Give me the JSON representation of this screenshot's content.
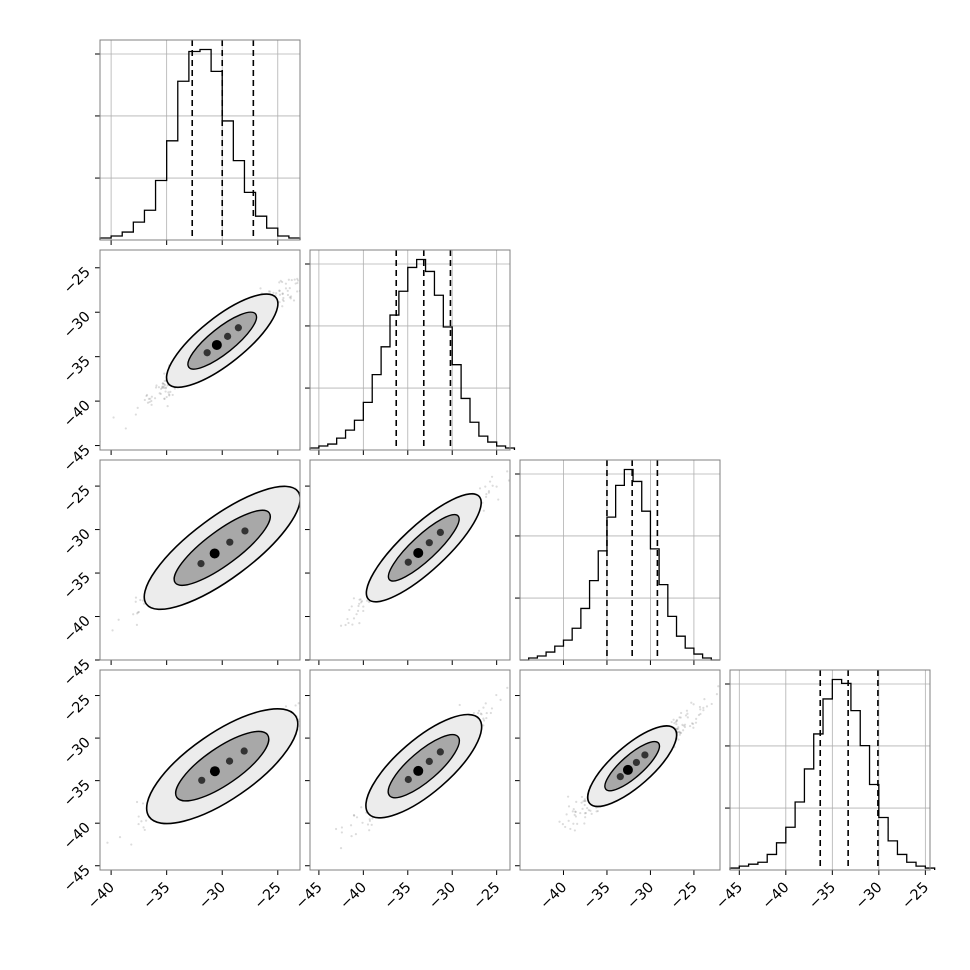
{
  "chart_data": {
    "type": "corner",
    "n_params": 4,
    "colors": {
      "hist": "#000000",
      "quantile": "#000000",
      "scatter": "#808080",
      "grid": "#b0b0b0",
      "frame": "#808080"
    },
    "grid": true,
    "quantile_style": "dashed",
    "x_ranges": [
      [
        -41,
        -23
      ],
      [
        -46,
        -23.5
      ],
      [
        -45,
        -22
      ],
      [
        -46,
        -24.5
      ]
    ],
    "y_ranges": [
      null,
      [
        -45.5,
        -23
      ],
      [
        -45,
        -22
      ],
      [
        -45.5,
        -22
      ]
    ],
    "x_ticks": [
      [
        "−40",
        "−35",
        "−30",
        "−25"
      ],
      [
        "−45",
        "−40",
        "−35",
        "−30",
        "−25"
      ],
      [
        "−40",
        "−35",
        "−30",
        "−25"
      ],
      [
        "−45",
        "−40",
        "−35",
        "−30",
        "−25"
      ]
    ],
    "x_tick_values": [
      [
        -40,
        -35,
        -30,
        -25
      ],
      [
        -45,
        -40,
        -35,
        -30,
        -25
      ],
      [
        -40,
        -35,
        -30,
        -25
      ],
      [
        -45,
        -40,
        -35,
        -30,
        -25
      ]
    ],
    "y_ticks": [
      "−25",
      "−30",
      "−35",
      "−40",
      "−45"
    ],
    "y_tick_values": [
      -25,
      -30,
      -35,
      -40,
      -45
    ],
    "histograms": [
      {
        "param": 0,
        "bin_start": -41,
        "bin_width": 1,
        "counts": [
          1,
          2,
          4,
          9,
          15,
          30,
          50,
          80,
          95,
          96,
          85,
          60,
          40,
          24,
          12,
          6,
          2,
          1
        ],
        "quantiles": [
          -32.7,
          -30.0,
          -27.2
        ]
      },
      {
        "param": 1,
        "bin_start": -46,
        "bin_width": 1,
        "counts": [
          1,
          2,
          3,
          6,
          10,
          15,
          24,
          38,
          52,
          68,
          80,
          92,
          96,
          90,
          78,
          62,
          43,
          26,
          14,
          7,
          4,
          2,
          1
        ],
        "quantiles": [
          -36.3,
          -33.2,
          -30.2
        ]
      },
      {
        "param": 2,
        "bin_start": -45,
        "bin_width": 1,
        "counts": [
          0,
          1,
          2,
          4,
          7,
          10,
          16,
          26,
          40,
          55,
          72,
          88,
          96,
          90,
          75,
          56,
          38,
          22,
          12,
          6,
          3,
          1,
          0
        ],
        "quantiles": [
          -35.0,
          -32.1,
          -29.2
        ]
      },
      {
        "param": 3,
        "bin_start": -46,
        "bin_width": 1,
        "counts": [
          1,
          2,
          3,
          4,
          8,
          14,
          22,
          35,
          52,
          70,
          88,
          98,
          96,
          82,
          64,
          44,
          27,
          15,
          8,
          4,
          2,
          1
        ],
        "quantiles": [
          -36.3,
          -33.3,
          -30.1
        ]
      }
    ],
    "pairs": [
      {
        "x": 0,
        "y": 1,
        "center": [
          -30.0,
          -33.2
        ],
        "major": 6.2,
        "minor": 0.9,
        "slope": 1.0
      },
      {
        "x": 0,
        "y": 2,
        "center": [
          -30.0,
          -32.1
        ],
        "major": 8.5,
        "minor": 1.2,
        "slope": 0.95
      },
      {
        "x": 1,
        "y": 2,
        "center": [
          -33.2,
          -32.1
        ],
        "major": 8.5,
        "minor": 1.1,
        "slope": 0.95
      },
      {
        "x": 0,
        "y": 3,
        "center": [
          -30.0,
          -33.3
        ],
        "major": 8.0,
        "minor": 1.3,
        "slope": 0.9
      },
      {
        "x": 1,
        "y": 3,
        "center": [
          -33.2,
          -33.3
        ],
        "major": 8.2,
        "minor": 1.3,
        "slope": 0.9
      },
      {
        "x": 2,
        "y": 3,
        "center": [
          -32.1,
          -33.3
        ],
        "major": 6.5,
        "minor": 1.0,
        "slope": 0.9
      }
    ],
    "title": "",
    "xlabel": "",
    "ylabel": ""
  }
}
